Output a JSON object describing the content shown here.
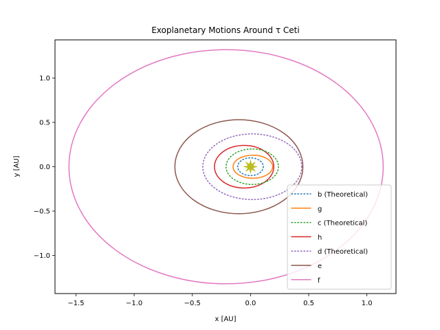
{
  "chart_data": {
    "type": "line",
    "title": "Exoplanetary Motions Around τ Ceti",
    "xlabel": "x [AU]",
    "ylabel": "y [AU]",
    "xlim": [
      -1.68,
      1.25
    ],
    "ylim": [
      -1.43,
      1.43
    ],
    "xticks": [
      -1.5,
      -1.0,
      -0.5,
      0.0,
      0.5,
      1.0
    ],
    "yticks": [
      -1.0,
      -0.5,
      0.0,
      0.5,
      1.0
    ],
    "xtick_labels": [
      "−1.5",
      "−1.0",
      "−0.5",
      "0.0",
      "0.5",
      "1.0"
    ],
    "ytick_labels": [
      "−1.0",
      "−0.5",
      "0.0",
      "0.5",
      "1.0"
    ],
    "grid": false,
    "legend_position": "lower-right",
    "star": {
      "x": 0.0,
      "y": 0.0,
      "color": "#bcbd22"
    },
    "series": [
      {
        "name": "b (Theoretical)",
        "color": "#1f77b4",
        "style": "dotted",
        "x_min": -0.11,
        "x_max": 0.11,
        "y_max": 0.1
      },
      {
        "name": "g",
        "color": "#ff7f0e",
        "style": "solid",
        "x_min": -0.15,
        "x_max": 0.19,
        "y_max": 0.13
      },
      {
        "name": "c (Theoretical)",
        "color": "#2ca02c",
        "style": "dotted",
        "x_min": -0.21,
        "x_max": 0.24,
        "y_max": 0.2
      },
      {
        "name": "h",
        "color": "#d62728",
        "style": "solid",
        "x_min": -0.31,
        "x_max": 0.2,
        "y_max": 0.24
      },
      {
        "name": "d (Theoretical)",
        "color": "#9467bd",
        "style": "dotted",
        "x_min": -0.41,
        "x_max": 0.44,
        "y_max": 0.37
      },
      {
        "name": "e",
        "color": "#8c564b",
        "style": "solid",
        "x_min": -0.65,
        "x_max": 0.45,
        "y_max": 0.53
      },
      {
        "name": "f",
        "color": "#e377c2",
        "style": "solid",
        "x_min": -1.56,
        "x_max": 1.14,
        "y_max": 1.32
      }
    ]
  }
}
